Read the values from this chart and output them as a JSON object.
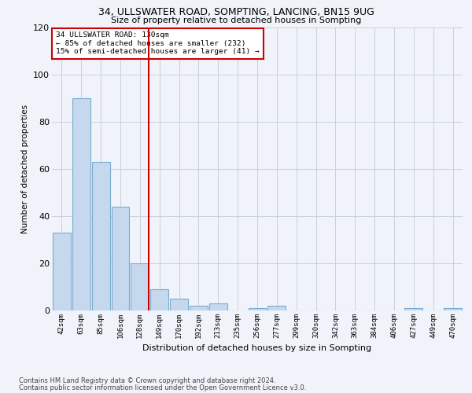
{
  "title1": "34, ULLSWATER ROAD, SOMPTING, LANCING, BN15 9UG",
  "title2": "Size of property relative to detached houses in Sompting",
  "xlabel": "Distribution of detached houses by size in Sompting",
  "ylabel": "Number of detached properties",
  "footer1": "Contains HM Land Registry data © Crown copyright and database right 2024.",
  "footer2": "Contains public sector information licensed under the Open Government Licence v3.0.",
  "categories": [
    "42sqm",
    "63sqm",
    "85sqm",
    "106sqm",
    "128sqm",
    "149sqm",
    "170sqm",
    "192sqm",
    "213sqm",
    "235sqm",
    "256sqm",
    "277sqm",
    "299sqm",
    "320sqm",
    "342sqm",
    "363sqm",
    "384sqm",
    "406sqm",
    "427sqm",
    "449sqm",
    "470sqm"
  ],
  "values": [
    33,
    90,
    63,
    44,
    20,
    9,
    5,
    2,
    3,
    0,
    1,
    2,
    0,
    0,
    0,
    0,
    0,
    0,
    1,
    0,
    1
  ],
  "bar_color": "#c5d8ee",
  "bar_edge_color": "#7aabcf",
  "annotation_text1": "34 ULLSWATER ROAD: 130sqm",
  "annotation_text2": "← 85% of detached houses are smaller (232)",
  "annotation_text3": "15% of semi-detached houses are larger (41) →",
  "annotation_box_color": "#ffffff",
  "annotation_box_edge": "#cc0000",
  "vline_color": "#cc0000",
  "ylim": [
    0,
    120
  ],
  "yticks": [
    0,
    20,
    40,
    60,
    80,
    100,
    120
  ],
  "background_color": "#f0f4fa",
  "grid_color": "#c8d0dc"
}
